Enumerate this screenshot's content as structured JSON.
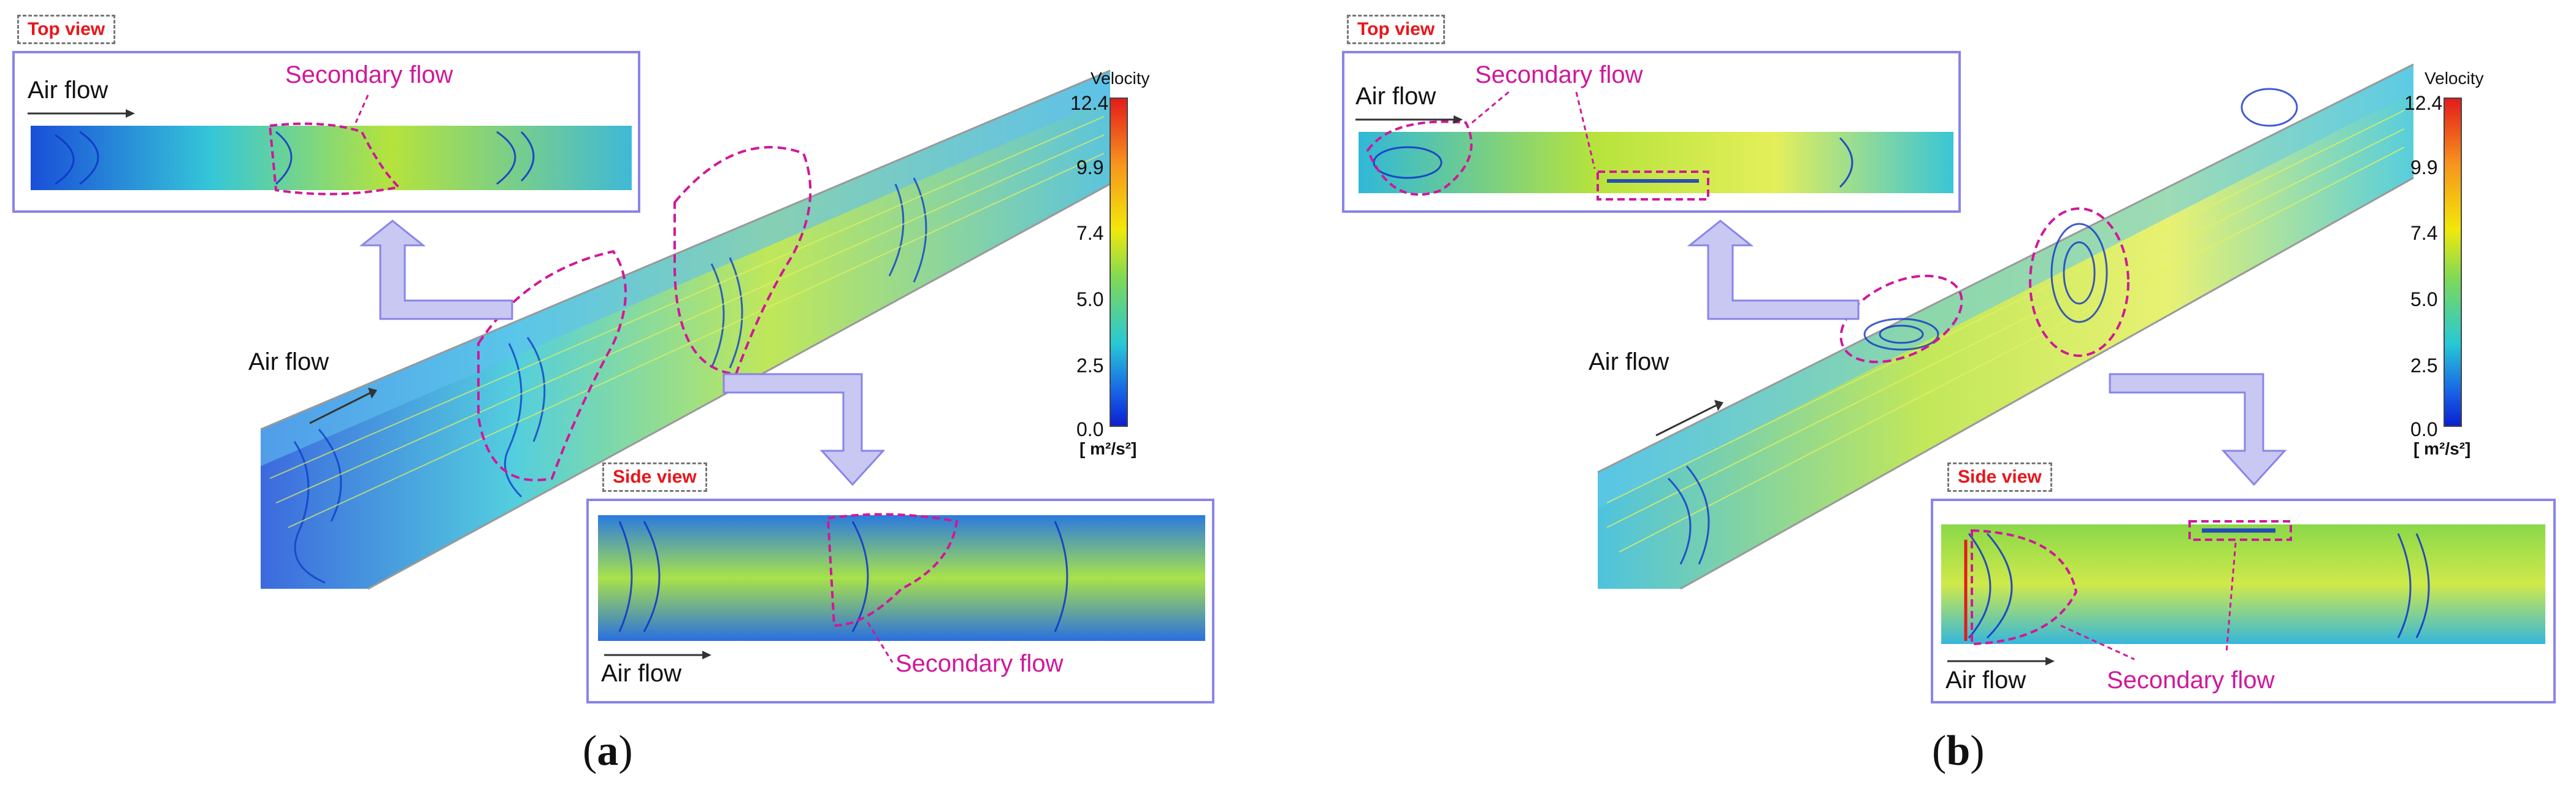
{
  "panels": [
    {
      "caption_letter": "a",
      "top_view": {
        "tag": "Top view",
        "air_label": "Air flow",
        "secondary_label": "Secondary flow"
      },
      "side_view": {
        "tag": "Side view",
        "air_label": "Air flow",
        "secondary_label": "Secondary flow"
      },
      "main_air_label": "Air flow"
    },
    {
      "caption_letter": "b",
      "top_view": {
        "tag": "Top view",
        "air_label": "Air flow",
        "secondary_label": "Secondary flow"
      },
      "side_view": {
        "tag": "Side view",
        "air_label": "Air flow",
        "secondary_label": "Secondary flow"
      },
      "main_air_label": "Air flow"
    }
  ],
  "colorbar": {
    "title": "Velocity",
    "ticks": [
      "12.4",
      "9.9",
      "7.4",
      "5.0",
      "2.5",
      "0.0"
    ],
    "unit": "[ m²/s²]",
    "colors": [
      "#e41a1c",
      "#f7941d",
      "#f2e80a",
      "#7ed957",
      "#27c8d6",
      "#1860e6",
      "#0a1fd0"
    ]
  },
  "colors": {
    "frame": "#8a84e8",
    "secondary": "#d0189a",
    "arrow_fill": "#c8c8f2"
  }
}
